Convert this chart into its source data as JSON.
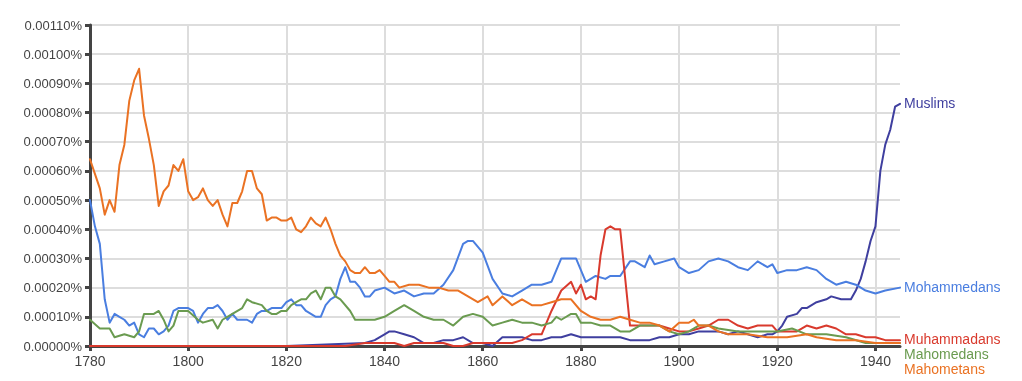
{
  "chart_data": {
    "type": "line",
    "xlim": [
      1780,
      1945
    ],
    "xticks": [
      1780,
      1800,
      1820,
      1840,
      1860,
      1880,
      1900,
      1920,
      1940
    ],
    "ylim": [
      0,
      0.0011
    ],
    "yticks": [
      {
        "value": 0,
        "label": "0.00000%"
      },
      {
        "value": 0.0001,
        "label": "0.00010%"
      },
      {
        "value": 0.0002,
        "label": "0.00020%"
      },
      {
        "value": 0.0003,
        "label": "0.00030%"
      },
      {
        "value": 0.0004,
        "label": "0.00040%"
      },
      {
        "value": 0.0005,
        "label": "0.00050%"
      },
      {
        "value": 0.0006,
        "label": "0.00060%"
      },
      {
        "value": 0.0007,
        "label": "0.00070%"
      },
      {
        "value": 0.0008,
        "label": "0.00080%"
      },
      {
        "value": 0.0009,
        "label": "0.00090%"
      },
      {
        "value": 0.001,
        "label": "0.00100%"
      },
      {
        "value": 0.0011,
        "label": "0.00110%"
      }
    ],
    "grid": true,
    "legend": false,
    "marker": "none",
    "line_style": "solid",
    "series": [
      {
        "name": "Muslims",
        "color": "#3f3f9f",
        "x": [
          1780,
          1800,
          1820,
          1836,
          1838,
          1840,
          1841,
          1842,
          1844,
          1846,
          1848,
          1850,
          1852,
          1854,
          1856,
          1858,
          1860,
          1862,
          1864,
          1866,
          1868,
          1870,
          1872,
          1874,
          1876,
          1878,
          1880,
          1882,
          1884,
          1886,
          1888,
          1890,
          1892,
          1894,
          1896,
          1898,
          1900,
          1902,
          1904,
          1906,
          1908,
          1910,
          1912,
          1914,
          1916,
          1918,
          1919,
          1920,
          1921,
          1922,
          1924,
          1925,
          1926,
          1928,
          1930,
          1931,
          1933,
          1935,
          1936,
          1937,
          1938,
          1939,
          1940,
          1941,
          1942,
          1943,
          1944,
          1945
        ],
        "values": [
          0,
          0,
          0,
          1e-05,
          2e-05,
          4e-05,
          5e-05,
          5e-05,
          4e-05,
          3e-05,
          1e-05,
          1e-05,
          2e-05,
          2e-05,
          3e-05,
          1e-05,
          1e-05,
          0,
          3e-05,
          3e-05,
          3e-05,
          2e-05,
          2e-05,
          3e-05,
          3e-05,
          4e-05,
          3e-05,
          3e-05,
          3e-05,
          3e-05,
          3e-05,
          2e-05,
          2e-05,
          2e-05,
          3e-05,
          3e-05,
          4e-05,
          4e-05,
          5e-05,
          5e-05,
          5e-05,
          4e-05,
          5e-05,
          4e-05,
          3e-05,
          4e-05,
          4e-05,
          5e-05,
          7e-05,
          0.0001,
          0.00011,
          0.00013,
          0.00013,
          0.00015,
          0.00016,
          0.00017,
          0.00016,
          0.00016,
          0.00019,
          0.00023,
          0.00029,
          0.00036,
          0.00041,
          0.0006,
          0.00069,
          0.00074,
          0.00082,
          0.00083
        ]
      },
      {
        "name": "Mohammedans",
        "color": "#4a7ee0",
        "x": [
          1780,
          1781,
          1782,
          1783,
          1784,
          1785,
          1786,
          1787,
          1788,
          1789,
          1790,
          1791,
          1792,
          1793,
          1794,
          1795,
          1796,
          1797,
          1798,
          1799,
          1800,
          1801,
          1802,
          1803,
          1804,
          1805,
          1806,
          1807,
          1808,
          1809,
          1810,
          1811,
          1812,
          1813,
          1814,
          1815,
          1816,
          1817,
          1818,
          1819,
          1820,
          1821,
          1822,
          1823,
          1824,
          1825,
          1826,
          1827,
          1828,
          1829,
          1830,
          1831,
          1832,
          1833,
          1834,
          1835,
          1836,
          1837,
          1838,
          1840,
          1842,
          1844,
          1846,
          1848,
          1850,
          1852,
          1854,
          1856,
          1857,
          1858,
          1860,
          1862,
          1864,
          1866,
          1868,
          1870,
          1872,
          1874,
          1876,
          1878,
          1879,
          1881,
          1883,
          1885,
          1886,
          1888,
          1890,
          1891,
          1893,
          1894,
          1895,
          1897,
          1899,
          1900,
          1902,
          1904,
          1906,
          1908,
          1910,
          1912,
          1914,
          1916,
          1918,
          1919,
          1920,
          1922,
          1924,
          1926,
          1928,
          1930,
          1932,
          1934,
          1936,
          1938,
          1940,
          1942,
          1945
        ],
        "values": [
          0.0005,
          0.00041,
          0.00035,
          0.00016,
          8e-05,
          0.00011,
          0.0001,
          9e-05,
          7e-05,
          8e-05,
          4e-05,
          3e-05,
          6e-05,
          6e-05,
          4e-05,
          5e-05,
          7e-05,
          0.00012,
          0.00013,
          0.00013,
          0.00013,
          0.00012,
          8e-05,
          0.00011,
          0.00013,
          0.00013,
          0.00014,
          0.00012,
          9e-05,
          0.00011,
          9e-05,
          9e-05,
          9e-05,
          8e-05,
          0.00011,
          0.00012,
          0.00012,
          0.00013,
          0.00013,
          0.00013,
          0.00015,
          0.00016,
          0.00014,
          0.00014,
          0.00012,
          0.00011,
          0.0001,
          0.0001,
          0.00014,
          0.00016,
          0.00017,
          0.00023,
          0.00027,
          0.00022,
          0.00022,
          0.0002,
          0.00017,
          0.00017,
          0.00019,
          0.0002,
          0.00018,
          0.00019,
          0.00017,
          0.00018,
          0.00018,
          0.00021,
          0.00026,
          0.00035,
          0.00036,
          0.00036,
          0.00032,
          0.00023,
          0.00018,
          0.00017,
          0.00019,
          0.00021,
          0.00021,
          0.00022,
          0.0003,
          0.0003,
          0.0003,
          0.00022,
          0.00024,
          0.00023,
          0.00024,
          0.00024,
          0.00029,
          0.00029,
          0.00027,
          0.00031,
          0.00028,
          0.00029,
          0.0003,
          0.00027,
          0.00025,
          0.00026,
          0.00029,
          0.0003,
          0.00029,
          0.00027,
          0.00026,
          0.00029,
          0.00027,
          0.00028,
          0.00025,
          0.00026,
          0.00026,
          0.00027,
          0.00026,
          0.00023,
          0.00021,
          0.00022,
          0.00021,
          0.00019,
          0.00018,
          0.00019,
          0.0002
        ]
      },
      {
        "name": "Muhammadans",
        "color": "#d93a2d",
        "x": [
          1780,
          1800,
          1820,
          1832,
          1836,
          1840,
          1842,
          1844,
          1846,
          1848,
          1850,
          1852,
          1854,
          1856,
          1858,
          1860,
          1862,
          1864,
          1866,
          1868,
          1870,
          1872,
          1874,
          1876,
          1878,
          1879,
          1880,
          1881,
          1882,
          1883,
          1884,
          1885,
          1886,
          1887,
          1888,
          1890,
          1891,
          1893,
          1896,
          1898,
          1900,
          1902,
          1904,
          1906,
          1908,
          1910,
          1912,
          1914,
          1916,
          1918,
          1919,
          1920,
          1922,
          1924,
          1926,
          1928,
          1930,
          1932,
          1934,
          1936,
          1938,
          1940,
          1942,
          1945
        ],
        "values": [
          0,
          0,
          0,
          0,
          1e-05,
          1e-05,
          1e-05,
          0,
          1e-05,
          1e-05,
          1e-05,
          1e-05,
          0,
          0,
          1e-05,
          1e-05,
          1e-05,
          1e-05,
          1e-05,
          2e-05,
          4e-05,
          4e-05,
          0.00012,
          0.00019,
          0.00022,
          0.00018,
          0.00021,
          0.00016,
          0.00017,
          0.00016,
          0.00031,
          0.0004,
          0.00041,
          0.0004,
          0.0004,
          7e-05,
          7e-05,
          7e-05,
          7e-05,
          6e-05,
          5e-05,
          5e-05,
          6e-05,
          7e-05,
          9e-05,
          9e-05,
          7e-05,
          6e-05,
          7e-05,
          7e-05,
          7e-05,
          5e-05,
          5e-05,
          5e-05,
          7e-05,
          6e-05,
          7e-05,
          6e-05,
          4e-05,
          4e-05,
          3e-05,
          3e-05,
          2e-05,
          2e-05
        ]
      },
      {
        "name": "Mahomedans",
        "color": "#6a9b50",
        "x": [
          1780,
          1782,
          1784,
          1785,
          1787,
          1789,
          1790,
          1791,
          1793,
          1794,
          1795,
          1796,
          1797,
          1798,
          1800,
          1802,
          1803,
          1805,
          1806,
          1807,
          1809,
          1811,
          1812,
          1813,
          1815,
          1816,
          1817,
          1818,
          1819,
          1820,
          1821,
          1822,
          1823,
          1824,
          1825,
          1826,
          1827,
          1828,
          1829,
          1830,
          1831,
          1833,
          1834,
          1836,
          1838,
          1840,
          1842,
          1844,
          1846,
          1848,
          1850,
          1852,
          1854,
          1856,
          1858,
          1860,
          1862,
          1864,
          1866,
          1868,
          1870,
          1872,
          1874,
          1875,
          1876,
          1878,
          1879,
          1880,
          1882,
          1884,
          1886,
          1888,
          1890,
          1892,
          1894,
          1896,
          1898,
          1900,
          1902,
          1904,
          1906,
          1908,
          1912,
          1916,
          1920,
          1923,
          1926,
          1930,
          1934,
          1938,
          1942,
          1945
        ],
        "values": [
          9e-05,
          6e-05,
          6e-05,
          3e-05,
          4e-05,
          3e-05,
          5e-05,
          0.00011,
          0.00011,
          0.00012,
          9e-05,
          5e-05,
          7e-05,
          0.00012,
          0.00012,
          9e-05,
          8e-05,
          9e-05,
          6e-05,
          9e-05,
          0.00011,
          0.00013,
          0.00016,
          0.00015,
          0.00014,
          0.00012,
          0.00011,
          0.00011,
          0.00012,
          0.00012,
          0.00014,
          0.00015,
          0.00016,
          0.00016,
          0.00018,
          0.00019,
          0.00016,
          0.0002,
          0.0002,
          0.00017,
          0.00016,
          0.00012,
          9e-05,
          9e-05,
          9e-05,
          0.0001,
          0.00012,
          0.00014,
          0.00012,
          0.0001,
          9e-05,
          9e-05,
          7e-05,
          0.0001,
          0.00011,
          0.0001,
          7e-05,
          8e-05,
          9e-05,
          8e-05,
          8e-05,
          7e-05,
          8e-05,
          0.0001,
          9e-05,
          0.00011,
          0.00011,
          8e-05,
          8e-05,
          7e-05,
          7e-05,
          5e-05,
          5e-05,
          7e-05,
          7e-05,
          7e-05,
          5e-05,
          4e-05,
          5e-05,
          7e-05,
          7e-05,
          6e-05,
          5e-05,
          5e-05,
          5e-05,
          6e-05,
          4e-05,
          4e-05,
          3e-05,
          1e-05,
          1e-05,
          1e-05
        ]
      },
      {
        "name": "Mahometans",
        "color": "#ea7223",
        "x": [
          1780,
          1781,
          1782,
          1783,
          1784,
          1785,
          1786,
          1787,
          1788,
          1789,
          1790,
          1791,
          1792,
          1793,
          1794,
          1795,
          1796,
          1797,
          1798,
          1799,
          1800,
          1801,
          1802,
          1803,
          1804,
          1805,
          1806,
          1807,
          1808,
          1809,
          1810,
          1811,
          1812,
          1813,
          1814,
          1815,
          1816,
          1817,
          1818,
          1819,
          1820,
          1821,
          1822,
          1823,
          1824,
          1825,
          1826,
          1827,
          1828,
          1829,
          1830,
          1831,
          1832,
          1833,
          1834,
          1835,
          1836,
          1837,
          1838,
          1839,
          1840,
          1841,
          1842,
          1843,
          1845,
          1847,
          1849,
          1851,
          1853,
          1855,
          1857,
          1859,
          1861,
          1862,
          1864,
          1866,
          1868,
          1870,
          1872,
          1874,
          1876,
          1878,
          1880,
          1882,
          1884,
          1886,
          1888,
          1890,
          1892,
          1894,
          1896,
          1898,
          1900,
          1902,
          1903,
          1904,
          1906,
          1908,
          1910,
          1914,
          1918,
          1922,
          1926,
          1928,
          1932,
          1936,
          1940,
          1945
        ],
        "values": [
          0.00064,
          0.00059,
          0.00054,
          0.00045,
          0.0005,
          0.00046,
          0.00062,
          0.00069,
          0.00084,
          0.00091,
          0.00095,
          0.00079,
          0.00071,
          0.00062,
          0.00048,
          0.00053,
          0.00055,
          0.00062,
          0.0006,
          0.00064,
          0.00053,
          0.0005,
          0.00051,
          0.00054,
          0.0005,
          0.00048,
          0.0005,
          0.00045,
          0.00041,
          0.00049,
          0.00049,
          0.00053,
          0.0006,
          0.0006,
          0.00054,
          0.00052,
          0.00043,
          0.00044,
          0.00044,
          0.00043,
          0.00043,
          0.00044,
          0.0004,
          0.00039,
          0.00041,
          0.00044,
          0.00042,
          0.00041,
          0.00044,
          0.0004,
          0.00035,
          0.00031,
          0.00029,
          0.00026,
          0.00025,
          0.00025,
          0.00027,
          0.00025,
          0.00025,
          0.00026,
          0.00024,
          0.00022,
          0.00022,
          0.0002,
          0.00021,
          0.00021,
          0.0002,
          0.0002,
          0.00019,
          0.00019,
          0.00017,
          0.00015,
          0.00017,
          0.00014,
          0.00017,
          0.00014,
          0.00016,
          0.00014,
          0.00014,
          0.00015,
          0.00016,
          0.00016,
          0.00012,
          0.0001,
          9e-05,
          9e-05,
          0.0001,
          9e-05,
          8e-05,
          8e-05,
          7e-05,
          5e-05,
          8e-05,
          8e-05,
          9e-05,
          7e-05,
          7e-05,
          5e-05,
          4e-05,
          4e-05,
          3e-05,
          3e-05,
          4e-05,
          3e-05,
          2e-05,
          2e-05,
          1e-05,
          1e-05
        ]
      }
    ]
  }
}
